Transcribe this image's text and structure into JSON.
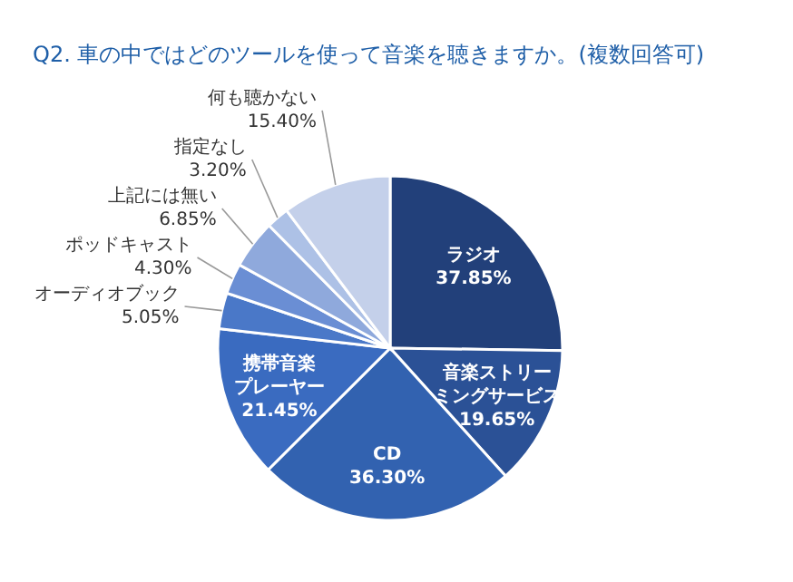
{
  "chart_data": {
    "type": "pie",
    "title": "Q2. 車の中ではどのツールを使って音楽を聴きますか。(複数回答可)",
    "categories": [
      "ラジオ",
      "音楽ストリーミングサービス",
      "CD",
      "携帯音楽プレーヤー",
      "オーディオブック",
      "ポッドキャスト",
      "上記には無い",
      "指定なし",
      "何も聴かない"
    ],
    "values": [
      37.85,
      19.65,
      36.3,
      21.45,
      5.05,
      4.3,
      6.85,
      3.2,
      15.4
    ],
    "value_labels": [
      "37.85%",
      "19.65%",
      "36.30%",
      "21.45%",
      "5.05%",
      "4.30%",
      "6.85%",
      "3.20%",
      "15.40%"
    ],
    "colors": [
      "#22407a",
      "#2b5196",
      "#3262b0",
      "#3a6bc0",
      "#4a78c8",
      "#6a8ed4",
      "#8fa9dc",
      "#adc1e6",
      "#c4d0ea"
    ]
  }
}
